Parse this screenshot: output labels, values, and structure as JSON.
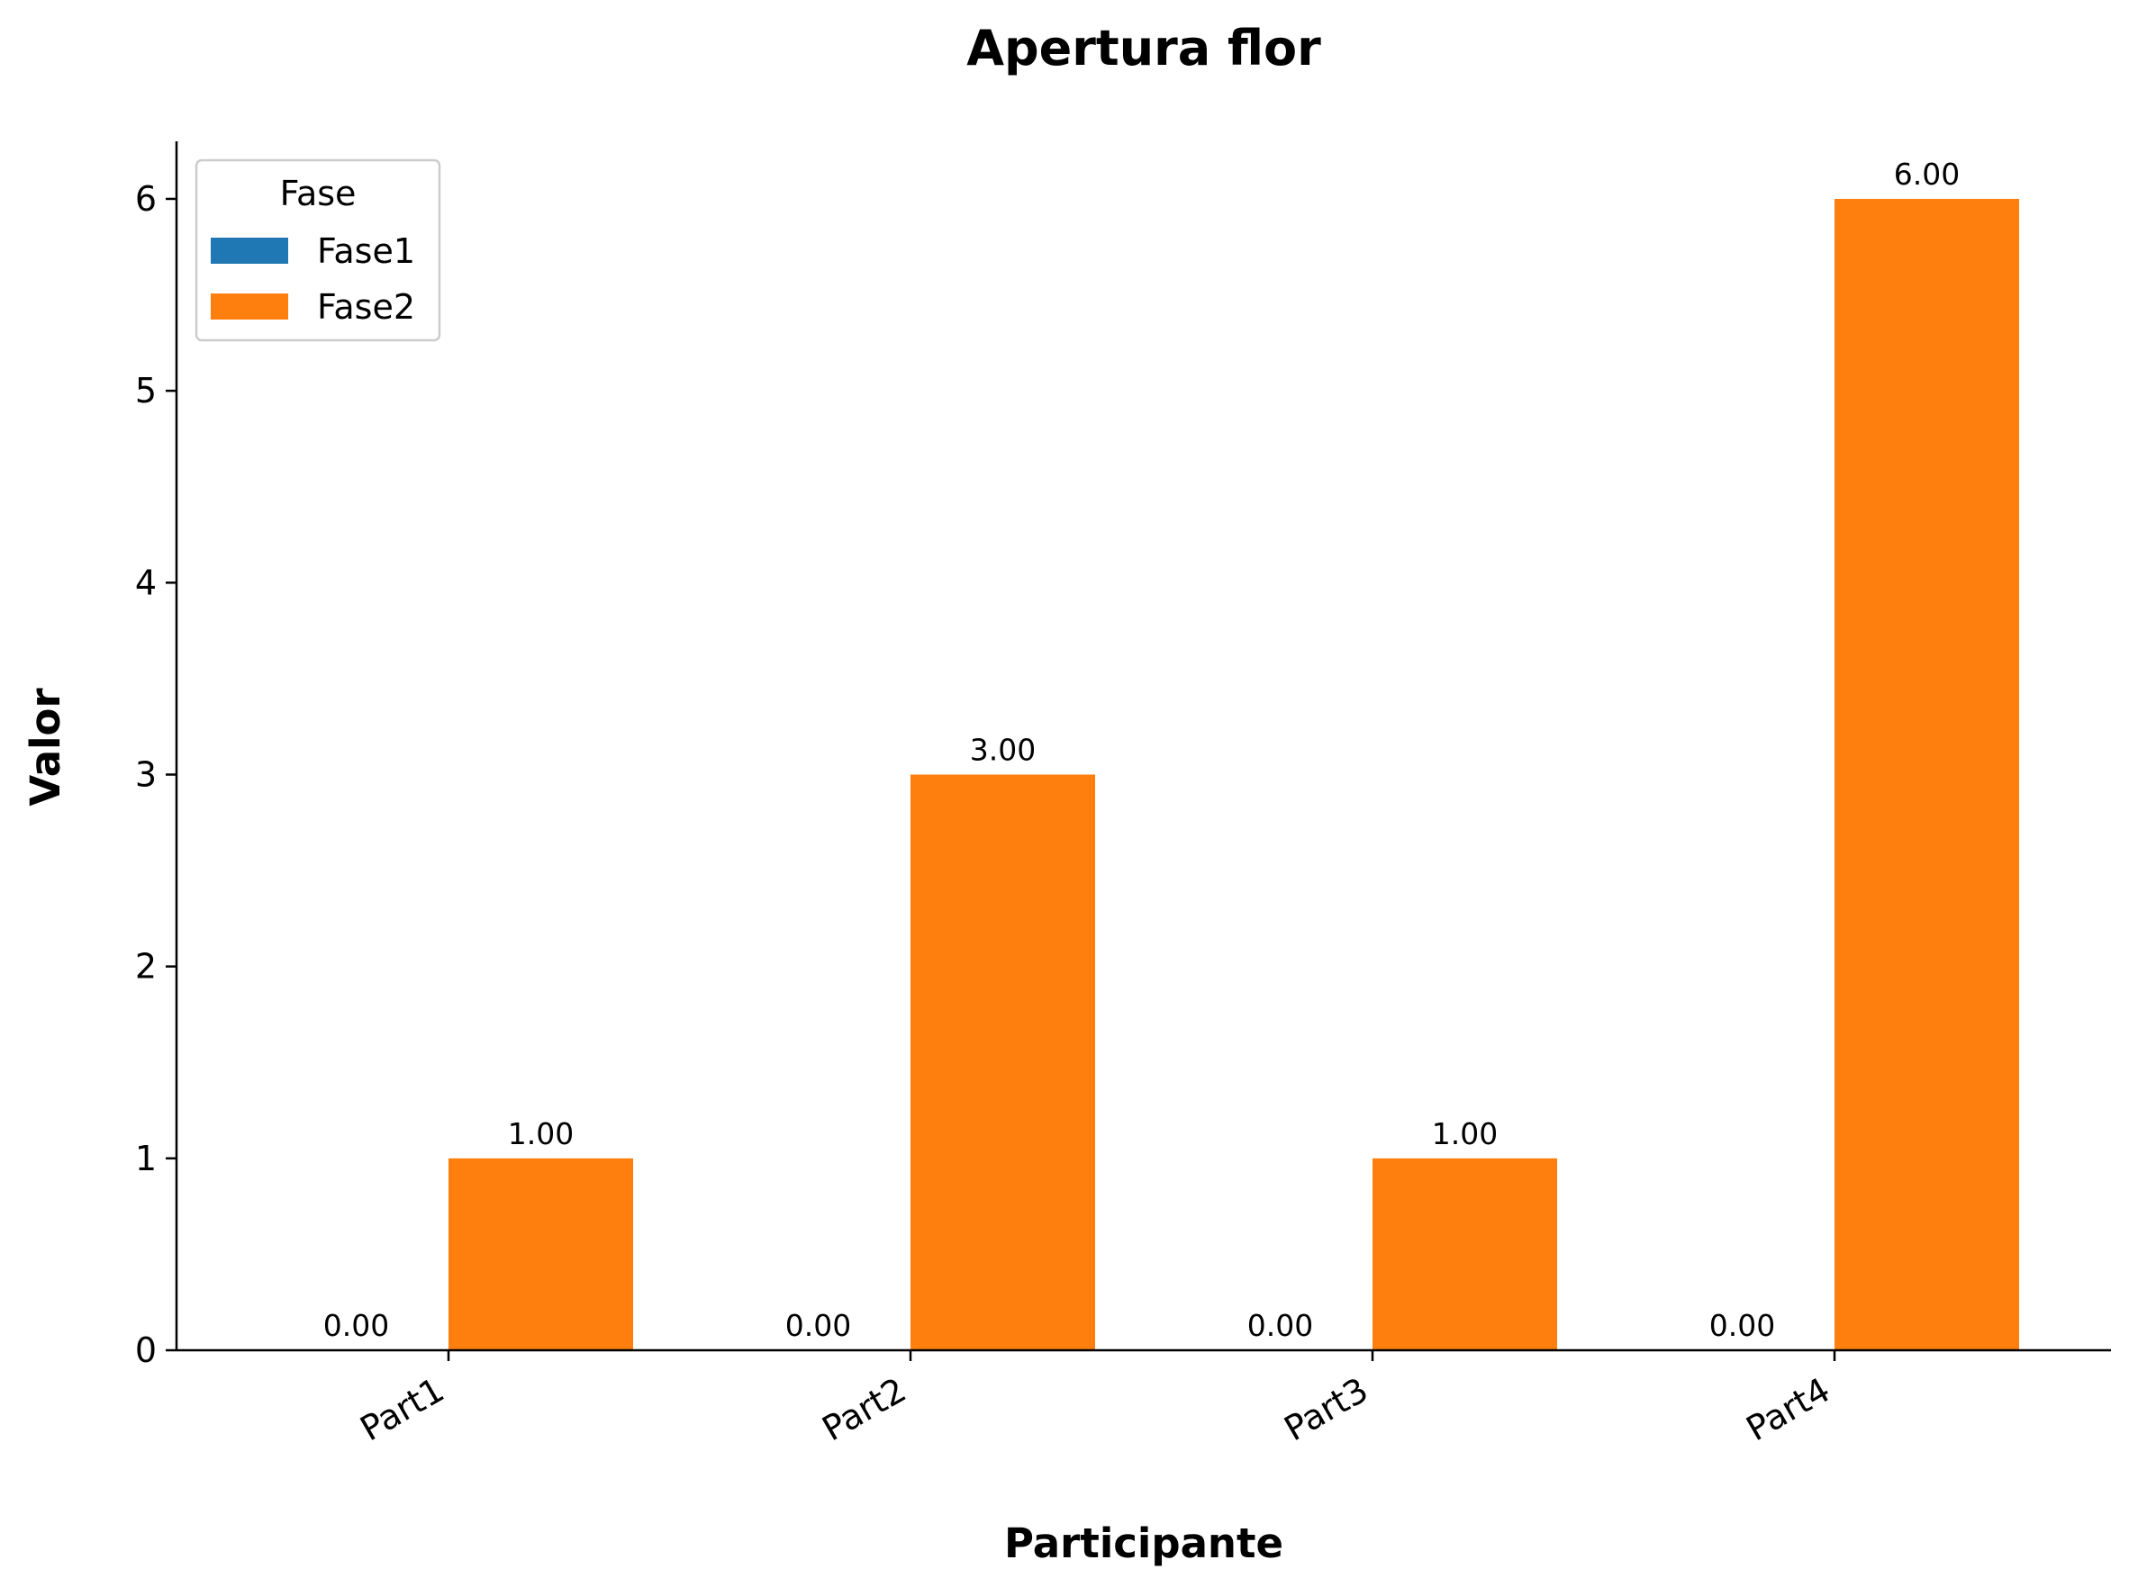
{
  "chart_data": {
    "type": "bar",
    "title": "Apertura flor",
    "xlabel": "Participante",
    "ylabel": "Valor",
    "categories": [
      "Part1",
      "Part2",
      "Part3",
      "Part4"
    ],
    "series": [
      {
        "name": "Fase1",
        "color": "#1f77b4",
        "values": [
          0,
          0,
          0,
          0
        ],
        "labels": [
          "0.00",
          "0.00",
          "0.00",
          "0.00"
        ]
      },
      {
        "name": "Fase2",
        "color": "#ff7f0e",
        "values": [
          1,
          3,
          1,
          6
        ],
        "labels": [
          "1.00",
          "3.00",
          "1.00",
          "6.00"
        ]
      }
    ],
    "ylim": [
      0,
      6.3
    ],
    "yticks": [
      "0",
      "1",
      "2",
      "3",
      "4",
      "5",
      "6"
    ],
    "legend": {
      "title": "Fase",
      "position": "top-left"
    },
    "grid": false
  }
}
